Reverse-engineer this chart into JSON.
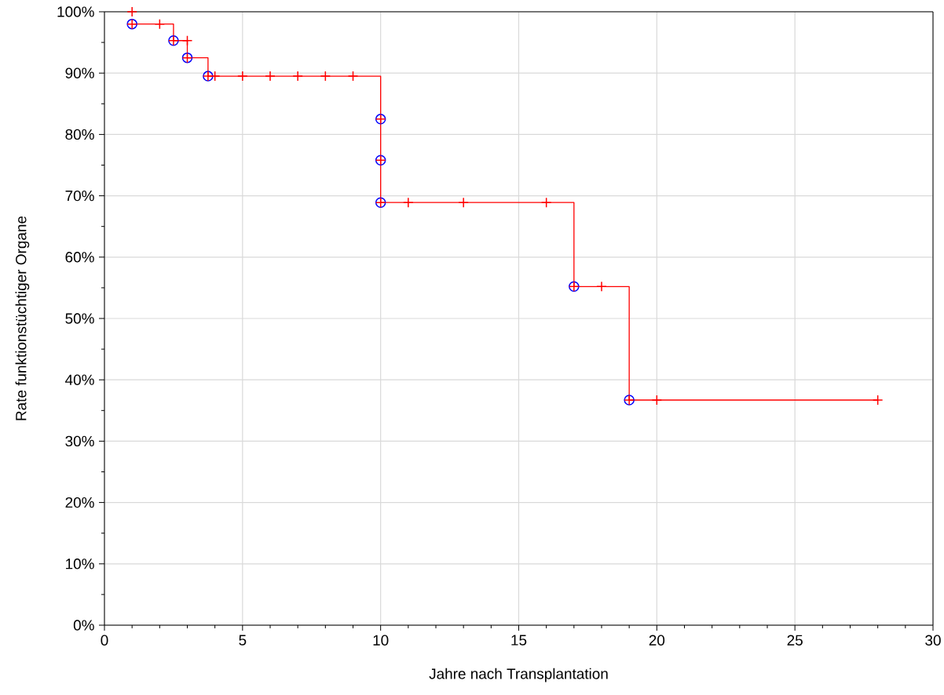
{
  "chart_data": {
    "type": "step",
    "xlabel": "Jahre nach Transplantation",
    "ylabel": "Rate funktionstüchtiger Organe",
    "xlim": [
      0,
      30
    ],
    "xticks": [
      0,
      5,
      10,
      15,
      20,
      25,
      30
    ],
    "ylim": [
      0,
      100
    ],
    "yticks": [
      {
        "value": 0,
        "label": "0%"
      },
      {
        "value": 10,
        "label": "10%"
      },
      {
        "value": 20,
        "label": "20%"
      },
      {
        "value": 30,
        "label": "30%"
      },
      {
        "value": 40,
        "label": "40%"
      },
      {
        "value": 50,
        "label": "50%"
      },
      {
        "value": 60,
        "label": "60%"
      },
      {
        "value": 70,
        "label": "70%"
      },
      {
        "value": 80,
        "label": "80%"
      },
      {
        "value": 90,
        "label": "90%"
      },
      {
        "value": 100,
        "label": "100%"
      }
    ],
    "grid": true,
    "series": [
      {
        "color": "#ff0000",
        "marker": "none",
        "line_style": "solid",
        "x": [
          1,
          2.5,
          3,
          3.75,
          10,
          17,
          19,
          28
        ],
        "values": [
          98,
          95.3,
          92.5,
          89.5,
          68.9,
          55.2,
          36.7,
          36.7
        ]
      },
      {
        "type": "scatter",
        "color": "#0000ff",
        "marker": "circle",
        "x": [
          1,
          2.5,
          3,
          3.75,
          10,
          10,
          10,
          17,
          19
        ],
        "values": [
          98,
          95.3,
          92.5,
          89.5,
          82.5,
          75.8,
          68.9,
          55.2,
          36.7
        ]
      },
      {
        "type": "scatter",
        "color": "#ff0000",
        "marker": "cross",
        "x": [
          1,
          1,
          2,
          2.5,
          3,
          3,
          3.75,
          4,
          5,
          6,
          7,
          8,
          9,
          10,
          10,
          10,
          11,
          13,
          16,
          17,
          18,
          19,
          20,
          28
        ],
        "values": [
          100,
          98,
          98,
          95.3,
          95.3,
          92.5,
          89.5,
          89.5,
          89.5,
          89.5,
          89.5,
          89.5,
          89.5,
          82.5,
          75.8,
          68.9,
          68.9,
          68.9,
          68.9,
          55.2,
          55.2,
          36.7,
          36.7,
          36.7
        ]
      }
    ]
  }
}
